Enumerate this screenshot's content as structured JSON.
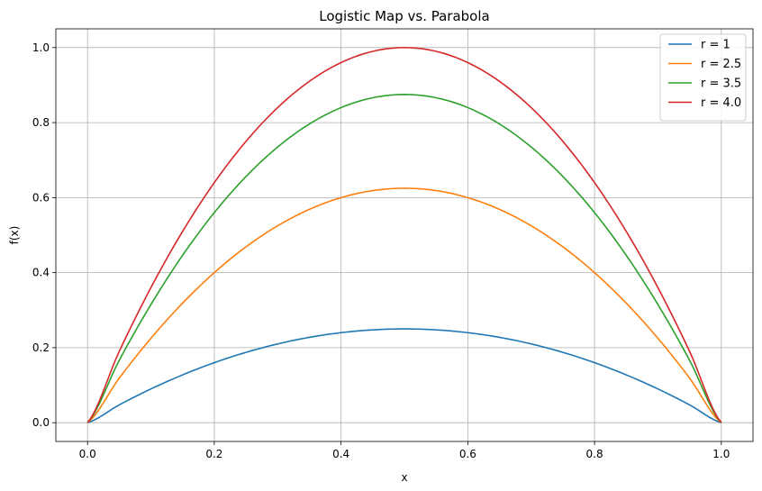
{
  "chart_data": {
    "type": "line",
    "title": "Logistic Map vs. Parabola",
    "xlabel": "x",
    "ylabel": "f(x)",
    "xlim": [
      -0.05,
      1.05
    ],
    "ylim": [
      -0.05,
      1.05
    ],
    "x_ticks": [
      0.0,
      0.2,
      0.4,
      0.6,
      0.8,
      1.0
    ],
    "x_tick_labels": [
      "0.0",
      "0.2",
      "0.4",
      "0.6",
      "0.8",
      "1.0"
    ],
    "y_ticks": [
      0.0,
      0.2,
      0.4,
      0.6,
      0.8,
      1.0
    ],
    "y_tick_labels": [
      "0.0",
      "0.2",
      "0.4",
      "0.6",
      "0.8",
      "1.0"
    ],
    "grid": true,
    "legend_position": "top-right",
    "x": [
      0.0,
      0.05,
      0.1,
      0.15,
      0.2,
      0.25,
      0.3,
      0.35,
      0.4,
      0.45,
      0.5,
      0.55,
      0.6,
      0.65,
      0.7,
      0.75,
      0.8,
      0.85,
      0.9,
      0.95,
      1.0
    ],
    "series": [
      {
        "name": "r = 1",
        "color": "#1f77b4",
        "values": [
          0.0,
          0.0475,
          0.09,
          0.1275,
          0.16,
          0.1875,
          0.21,
          0.2275,
          0.24,
          0.2475,
          0.25,
          0.2475,
          0.24,
          0.2275,
          0.21,
          0.1875,
          0.16,
          0.1275,
          0.09,
          0.0475,
          0.0
        ]
      },
      {
        "name": "r = 2.5",
        "color": "#ff7f0e",
        "values": [
          0.0,
          0.11875,
          0.225,
          0.31875,
          0.4,
          0.46875,
          0.525,
          0.56875,
          0.6,
          0.61875,
          0.625,
          0.61875,
          0.6,
          0.56875,
          0.525,
          0.46875,
          0.4,
          0.31875,
          0.225,
          0.11875,
          0.0
        ]
      },
      {
        "name": "r = 3.5",
        "color": "#2ca02c",
        "values": [
          0.0,
          0.16625,
          0.315,
          0.44625,
          0.56,
          0.65625,
          0.735,
          0.79625,
          0.84,
          0.86625,
          0.875,
          0.86625,
          0.84,
          0.79625,
          0.735,
          0.65625,
          0.56,
          0.44625,
          0.315,
          0.16625,
          0.0
        ]
      },
      {
        "name": "r = 4.0",
        "color": "#d62728",
        "values": [
          0.0,
          0.19,
          0.36,
          0.51,
          0.64,
          0.75,
          0.84,
          0.91,
          0.96,
          0.99,
          1.0,
          0.99,
          0.96,
          0.91,
          0.84,
          0.75,
          0.64,
          0.51,
          0.36,
          0.19,
          0.0
        ]
      }
    ]
  }
}
